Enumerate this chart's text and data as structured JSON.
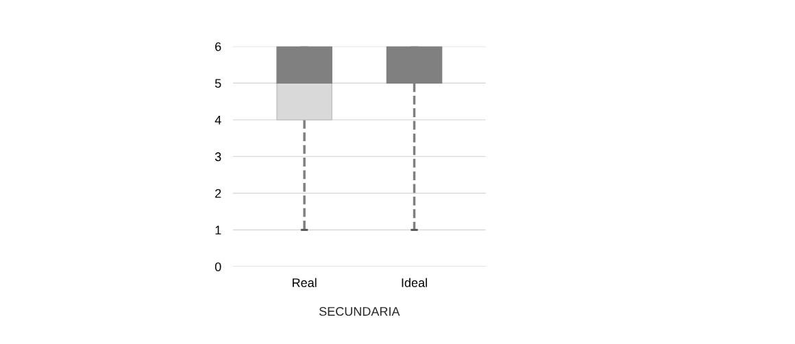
{
  "chart_data": {
    "type": "box",
    "xlabel": "SECUNDARIA",
    "categories": [
      "Real",
      "Ideal"
    ],
    "boxes": [
      {
        "low": 1,
        "q1": 4,
        "median": 5,
        "q3": 6,
        "high": 6
      },
      {
        "low": 1,
        "q1": 5,
        "median": 5,
        "q3": 6,
        "high": 6
      }
    ],
    "colors": [
      "#d9d9d9",
      "#808080"
    ],
    "ylim": [
      0,
      6
    ],
    "yticks": [
      0,
      1,
      2,
      3,
      4,
      5,
      6
    ],
    "grid": "y",
    "line_style": "dashed",
    "legend": false
  }
}
